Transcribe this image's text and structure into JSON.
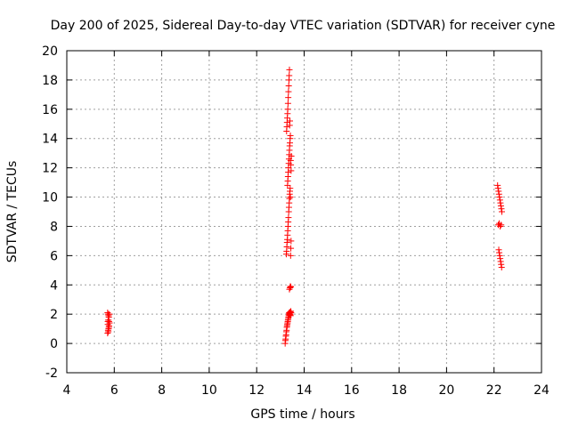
{
  "chart_data": {
    "type": "scatter",
    "title": "Day 200 of 2025, Sidereal Day-to-day VTEC variation (SDTVAR) for receiver cyne",
    "xlabel": "GPS time / hours",
    "ylabel": "SDTVAR / TECUs",
    "xlim": [
      4,
      24
    ],
    "ylim": [
      -2,
      20
    ],
    "xticks": [
      4,
      6,
      8,
      10,
      12,
      14,
      16,
      18,
      20,
      22,
      24
    ],
    "yticks": [
      -2,
      0,
      2,
      4,
      6,
      8,
      10,
      12,
      14,
      16,
      18,
      20
    ],
    "grid": true,
    "marker": "+",
    "series": [
      {
        "name": "SDTVAR",
        "color": "#ff0000",
        "x": [
          5.72,
          5.74,
          5.76,
          5.78,
          5.8,
          5.73,
          5.75,
          5.77,
          5.79,
          5.72,
          5.74,
          5.76,
          5.78,
          5.73,
          5.75,
          5.77,
          13.2,
          13.21,
          13.22,
          13.23,
          13.24,
          13.25,
          13.26,
          13.27,
          13.28,
          13.29,
          13.3,
          13.31,
          13.32,
          13.33,
          13.34,
          13.35,
          13.36,
          13.37,
          13.38,
          13.39,
          13.4,
          13.41,
          13.42,
          13.43,
          13.44,
          13.45,
          13.38,
          13.4,
          13.42,
          13.44,
          13.25,
          13.26,
          13.27,
          13.28,
          13.29,
          13.3,
          13.31,
          13.32,
          13.33,
          13.34,
          13.35,
          13.36,
          13.37,
          13.38,
          13.39,
          13.4,
          13.41,
          13.42,
          13.43,
          13.44,
          13.45,
          13.3,
          13.31,
          13.32,
          13.33,
          13.34,
          13.35,
          13.36,
          13.37,
          13.38,
          13.39,
          13.4,
          13.41,
          13.42,
          13.43,
          13.44,
          13.45,
          13.46,
          13.26,
          13.27,
          13.28,
          13.29,
          13.3,
          13.31,
          13.32,
          13.33,
          13.34,
          13.35,
          13.36,
          13.37,
          13.38,
          13.39,
          13.4,
          22.15,
          22.17,
          22.19,
          22.21,
          22.23,
          22.25,
          22.27,
          22.29,
          22.31,
          22.33,
          22.18,
          22.22,
          22.26,
          22.3,
          22.2,
          22.22,
          22.24,
          22.26,
          22.28,
          22.3,
          22.32
        ],
        "y": [
          0.7,
          0.9,
          1.0,
          1.2,
          1.4,
          1.5,
          1.6,
          1.8,
          2.0,
          2.1,
          2.0,
          1.9,
          1.5,
          1.3,
          0.8,
          1.1,
          0.0,
          0.2,
          0.3,
          0.5,
          0.6,
          0.8,
          0.9,
          1.1,
          1.2,
          1.3,
          1.4,
          1.5,
          1.6,
          1.7,
          1.8,
          1.9,
          2.0,
          2.1,
          2.05,
          1.95,
          2.1,
          2.15,
          2.0,
          1.9,
          2.2,
          2.1,
          3.7,
          3.8,
          3.9,
          3.85,
          6.1,
          6.3,
          6.6,
          6.9,
          7.1,
          7.4,
          7.7,
          8.0,
          8.3,
          8.6,
          9.0,
          9.3,
          9.6,
          9.9,
          10.2,
          10.4,
          10.6,
          10.0,
          6.0,
          6.5,
          7.0,
          10.8,
          11.1,
          11.4,
          11.7,
          12.0,
          12.3,
          12.6,
          12.9,
          13.2,
          13.5,
          13.7,
          14.0,
          14.2,
          12.5,
          12.2,
          11.8,
          12.8,
          14.5,
          14.8,
          15.1,
          15.4,
          15.7,
          16.0,
          16.4,
          16.8,
          17.2,
          17.6,
          18.0,
          18.3,
          18.7,
          14.9,
          15.2,
          10.8,
          10.6,
          10.4,
          10.2,
          10.0,
          9.8,
          9.6,
          9.4,
          9.2,
          9.0,
          8.1,
          8.2,
          8.0,
          8.1,
          6.4,
          6.2,
          6.0,
          5.8,
          5.6,
          5.4,
          5.2
        ]
      }
    ]
  }
}
